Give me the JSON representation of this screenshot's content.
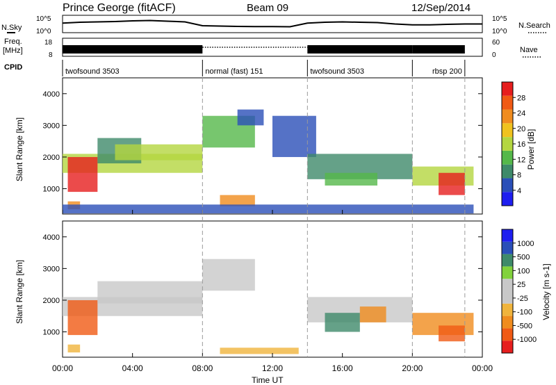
{
  "header": {
    "station": "Prince George (fitACF)",
    "beam": "Beam 09",
    "date": "12/Sep/2014"
  },
  "colors": {
    "power_scale": [
      "#1e1ef0",
      "#2a4fb8",
      "#3e8a6a",
      "#55b84a",
      "#b4d640",
      "#f0c21e",
      "#f08c1e",
      "#f05a14",
      "#e61e1e"
    ],
    "velocity_scale": [
      "#e61e1e",
      "#f05a14",
      "#f08c1e",
      "#f0b43c",
      "#c8c8c8",
      "#c8c8c8",
      "#82d23c",
      "#3e8a6a",
      "#2a4fb8",
      "#1e1ef0"
    ],
    "cpid_divider": "#9a9a9a"
  },
  "chart_data": [
    {
      "type": "line",
      "panel": "noise",
      "left_label": "N.Sky",
      "right_label": "N.Search",
      "left_ticks": [
        "10^5",
        "10^0"
      ],
      "right_ticks": [
        "10^5",
        "10^0"
      ],
      "series": [
        {
          "values": [
            0.55,
            0.6,
            0.62,
            0.64,
            0.68,
            0.7,
            0.66,
            0.62,
            0.4,
            0.38,
            0.36,
            0.35,
            0.35,
            0.34,
            0.55,
            0.6,
            0.62,
            0.6,
            0.58,
            0.5,
            0.45,
            0.45,
            0.48,
            0.5,
            0.5
          ]
        }
      ]
    },
    {
      "type": "line",
      "panel": "frequency",
      "left_label_1": "Freq.",
      "left_label_2": "[MHz]",
      "right_label": "Nave",
      "left_ticks": [
        "18",
        "8"
      ],
      "right_ticks": [
        "60",
        "0"
      ]
    },
    {
      "type": "table",
      "panel": "cpid",
      "label": "CPID",
      "segments": [
        {
          "start": 0.0,
          "end": 8.0,
          "name": "twofsound 3503"
        },
        {
          "start": 8.0,
          "end": 14.0,
          "name": "normal (fast) 151"
        },
        {
          "start": 14.0,
          "end": 20.0,
          "name": "twofsound 3503"
        },
        {
          "start": 20.0,
          "end": 23.0,
          "name": "rbsp 200"
        }
      ]
    },
    {
      "type": "heatmap",
      "panel": "power",
      "ylabel": "Slant Range [km]",
      "ylim": [
        200,
        4500
      ],
      "yticks": [
        1000,
        2000,
        3000,
        4000
      ],
      "colorbar_label": "Power [dB]",
      "colorbar_ticks": [
        "4",
        "8",
        "12",
        "16",
        "20",
        "24",
        "28"
      ],
      "colorbar_range": [
        0,
        30
      ],
      "regions": [
        {
          "x0": 0.0,
          "x1": 8.0,
          "r0": 1500,
          "r1": 2100,
          "level": 4
        },
        {
          "x0": 0.3,
          "x1": 2.0,
          "r0": 900,
          "r1": 2000,
          "level": 8
        },
        {
          "x0": 2.0,
          "x1": 4.5,
          "r0": 1800,
          "r1": 2600,
          "level": 2
        },
        {
          "x0": 3.0,
          "x1": 8.0,
          "r0": 1900,
          "r1": 2400,
          "level": 4
        },
        {
          "x0": 0.3,
          "x1": 1.0,
          "r0": 350,
          "r1": 600,
          "level": 6
        },
        {
          "x0": 8.0,
          "x1": 11.0,
          "r0": 2300,
          "r1": 3300,
          "level": 3
        },
        {
          "x0": 10.0,
          "x1": 11.5,
          "r0": 3000,
          "r1": 3500,
          "level": 1
        },
        {
          "x0": 9.0,
          "x1": 11.0,
          "r0": 450,
          "r1": 800,
          "level": 6
        },
        {
          "x0": 0.0,
          "x1": 23.5,
          "r0": 220,
          "r1": 500,
          "level": 1
        },
        {
          "x0": 12.0,
          "x1": 14.5,
          "r0": 2000,
          "r1": 3300,
          "level": 1
        },
        {
          "x0": 14.0,
          "x1": 20.0,
          "r0": 1300,
          "r1": 2100,
          "level": 2
        },
        {
          "x0": 15.0,
          "x1": 18.0,
          "r0": 1100,
          "r1": 1500,
          "level": 3
        },
        {
          "x0": 20.0,
          "x1": 23.5,
          "r0": 1100,
          "r1": 1700,
          "level": 4
        },
        {
          "x0": 21.5,
          "x1": 23.0,
          "r0": 800,
          "r1": 1500,
          "level": 8
        }
      ]
    },
    {
      "type": "heatmap",
      "panel": "velocity",
      "ylabel": "Slant Range [km]",
      "xlabel": "Time UT",
      "ylim": [
        200,
        4500
      ],
      "yticks": [
        1000,
        2000,
        3000,
        4000
      ],
      "xticks": [
        "00:00",
        "04:00",
        "08:00",
        "12:00",
        "16:00",
        "20:00",
        "00:00"
      ],
      "xlim": [
        0,
        24
      ],
      "colorbar_label": "Velocity [m s-1]",
      "colorbar_ticks": [
        "-1000",
        "-500",
        "-100",
        "-25",
        "25",
        "100",
        "500",
        "1000"
      ],
      "colorbar_range": [
        -1500,
        1500
      ],
      "regions": [
        {
          "x0": 0.0,
          "x1": 8.0,
          "r0": 1500,
          "r1": 2100,
          "level": 4
        },
        {
          "x0": 0.3,
          "x1": 2.0,
          "r0": 900,
          "r1": 2000,
          "level": 1
        },
        {
          "x0": 2.0,
          "x1": 8.0,
          "r0": 1900,
          "r1": 2600,
          "level": 4
        },
        {
          "x0": 8.0,
          "x1": 11.0,
          "r0": 2300,
          "r1": 3300,
          "level": 4
        },
        {
          "x0": 0.3,
          "x1": 1.0,
          "r0": 350,
          "r1": 600,
          "level": 3
        },
        {
          "x0": 9.0,
          "x1": 13.5,
          "r0": 300,
          "r1": 500,
          "level": 3
        },
        {
          "x0": 14.0,
          "x1": 20.0,
          "r0": 1300,
          "r1": 2100,
          "level": 4
        },
        {
          "x0": 15.0,
          "x1": 17.0,
          "r0": 1000,
          "r1": 1600,
          "level": 7
        },
        {
          "x0": 17.0,
          "x1": 18.5,
          "r0": 1300,
          "r1": 1800,
          "level": 2
        },
        {
          "x0": 20.0,
          "x1": 23.5,
          "r0": 900,
          "r1": 1600,
          "level": 2
        },
        {
          "x0": 21.5,
          "x1": 23.0,
          "r0": 700,
          "r1": 1200,
          "level": 1
        }
      ]
    }
  ]
}
